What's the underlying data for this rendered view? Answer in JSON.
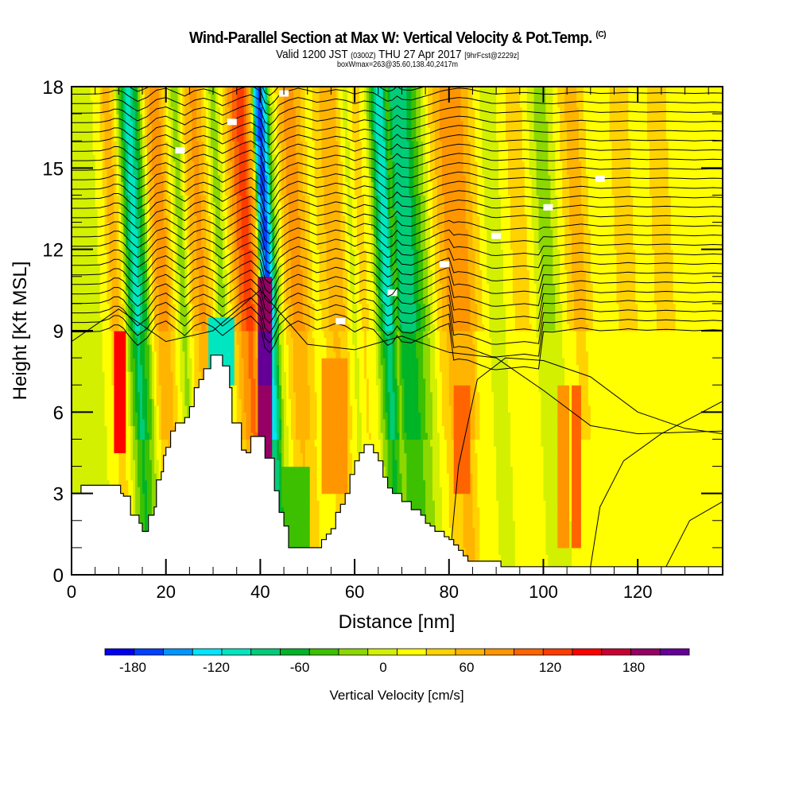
{
  "header": {
    "title": "Wind-Parallel Section at Max W: Vertical Velocity & Pot.Temp.",
    "title_mark": "(C)",
    "subtitle_a": "Valid 1200 JST",
    "subtitle_b": "(0300Z)",
    "subtitle_c": "THU 27 Apr 2017",
    "subtitle_d": "[9hrFcst@2229z]",
    "subtitle2": "boxWmax=263@35.60,138.40,2417m"
  },
  "chart_data": {
    "type": "heatmap",
    "title": "Wind-Parallel Section at Max W: Vertical Velocity & Pot.Temp.",
    "xlabel": "Distance [nm]",
    "ylabel": "Height [Kft MSL]",
    "xlim": [
      0,
      138
    ],
    "ylim": [
      0,
      18
    ],
    "xticks": [
      0,
      20,
      40,
      60,
      80,
      100,
      120
    ],
    "xtick_labels": [
      "0",
      "20",
      "40",
      "60",
      "80",
      "100",
      "120"
    ],
    "yticks": [
      0,
      3,
      6,
      9,
      12,
      15,
      18
    ],
    "ytick_labels": [
      "0",
      "3",
      "6",
      "9",
      "12",
      "15",
      "18"
    ],
    "colorbar": {
      "label": "Vertical Velocity [cm/s]",
      "bounds": [
        -200,
        220
      ],
      "step": 20,
      "tick_values": [
        -180,
        -120,
        -60,
        0,
        60,
        120,
        180
      ],
      "tick_labels": [
        "-180",
        "-120",
        "-60",
        "0",
        "60",
        "120",
        "180"
      ],
      "colors": [
        "#0000f0",
        "#0040ff",
        "#0096ff",
        "#00e6ff",
        "#00e6c0",
        "#00cc78",
        "#00b428",
        "#3cc000",
        "#8cd800",
        "#d2f000",
        "#ffff00",
        "#ffd200",
        "#ffb400",
        "#ff9600",
        "#ff6400",
        "#ff3c00",
        "#ff0000",
        "#c80032",
        "#960064",
        "#640096"
      ]
    },
    "w_bands": {
      "description": "approximate vertical velocity (cm/s) of vertical wave bands by distance (nm), upper troposphere",
      "x": [
        0,
        3,
        6,
        8,
        9.5,
        11,
        12.5,
        14,
        16,
        18,
        20,
        22,
        24,
        26,
        28,
        30,
        32,
        34,
        36,
        38,
        40,
        41,
        42,
        43,
        44,
        46,
        48,
        50,
        52,
        54,
        56,
        58,
        60,
        62,
        64,
        66,
        67,
        68,
        69,
        70,
        72,
        74,
        76,
        78,
        80,
        82,
        84,
        86,
        88,
        90,
        92,
        94,
        96,
        98,
        100,
        102,
        104,
        106,
        108,
        110,
        112,
        114,
        116,
        118,
        120,
        122,
        124,
        126,
        128,
        130,
        132,
        134,
        136,
        138
      ],
      "w": [
        -10,
        -10,
        -5,
        20,
        60,
        20,
        -60,
        -120,
        -60,
        50,
        80,
        20,
        -40,
        40,
        70,
        30,
        -40,
        20,
        80,
        120,
        40,
        -140,
        -180,
        -120,
        -30,
        40,
        80,
        50,
        10,
        30,
        60,
        40,
        -10,
        30,
        10,
        -80,
        -120,
        -100,
        -40,
        -90,
        -100,
        -60,
        -20,
        30,
        60,
        80,
        70,
        40,
        10,
        -20,
        0,
        20,
        40,
        10,
        -20,
        -30,
        0,
        30,
        60,
        30,
        0,
        10,
        20,
        40,
        20,
        10,
        20,
        30,
        20,
        10,
        0,
        10,
        20,
        10
      ]
    },
    "terrain": {
      "description": "terrain profile height (kft MSL) by distance (nm), drawn as white step polygon",
      "x": [
        0,
        2,
        10,
        10.4,
        11,
        12.5,
        13,
        14.3,
        15,
        16.3,
        17.5,
        18,
        19,
        19.5,
        20,
        21,
        22,
        23,
        24,
        25,
        26,
        27,
        28,
        29.5,
        31,
        32,
        33,
        33.5,
        34,
        35,
        36,
        37,
        38,
        40,
        41,
        42,
        43,
        44,
        45,
        46,
        47,
        52,
        53,
        54,
        55,
        56,
        57,
        58,
        59,
        60,
        61,
        62,
        63,
        64,
        65,
        66,
        67,
        68,
        70,
        72,
        74,
        75,
        76,
        77,
        79,
        80,
        81,
        82,
        83,
        84,
        90,
        91,
        96,
        100,
        110,
        120,
        130,
        138
      ],
      "h": [
        3.0,
        3.3,
        3.3,
        3.0,
        2.9,
        2.2,
        2.2,
        1.9,
        1.6,
        2.2,
        2.5,
        3.5,
        3.8,
        4.4,
        4.7,
        5.3,
        5.6,
        5.6,
        5.8,
        6.2,
        6.9,
        7.2,
        7.6,
        8.1,
        8.1,
        7.7,
        7.7,
        6.9,
        5.6,
        5.6,
        4.6,
        4.5,
        5.1,
        5.1,
        4.3,
        4.3,
        3.1,
        2.3,
        1.8,
        1.0,
        1.0,
        1.0,
        1.3,
        1.5,
        1.7,
        2.3,
        2.6,
        3.0,
        3.7,
        4.2,
        4.5,
        4.8,
        4.8,
        4.5,
        4.2,
        3.6,
        3.2,
        3.0,
        2.7,
        2.4,
        2.2,
        1.9,
        1.8,
        1.6,
        1.4,
        1.3,
        1.1,
        0.9,
        0.7,
        0.5,
        0.5,
        0.3,
        0.3,
        0.3,
        0.3,
        0.3,
        0.3,
        0.3
      ]
    },
    "theta_contours": {
      "description": "potential temperature isentropes shown as black contour lines with small white inline labels",
      "count": 27
    }
  }
}
